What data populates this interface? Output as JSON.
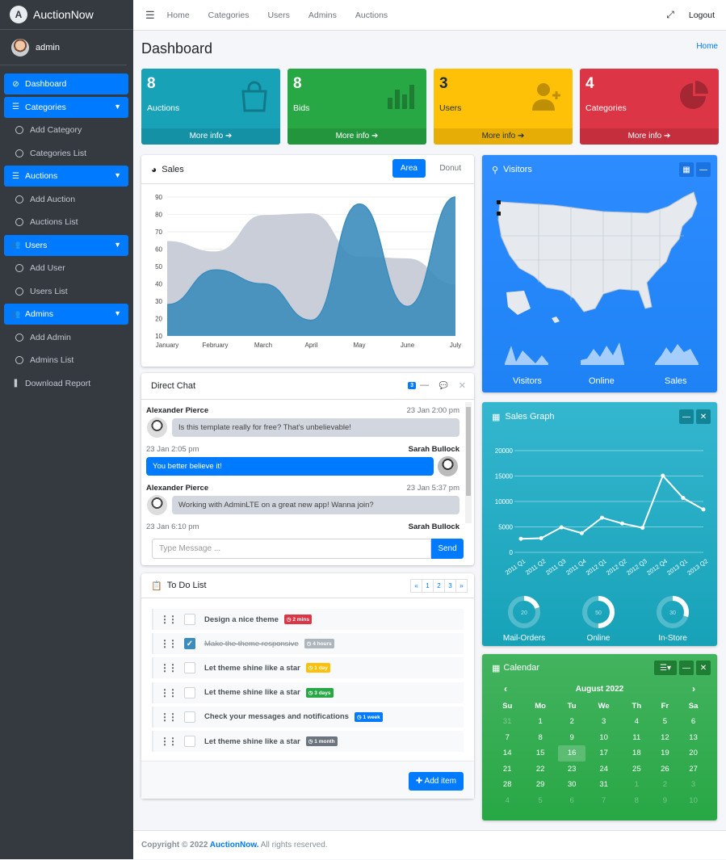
{
  "app": {
    "brand": "AuctionNow",
    "user": "admin"
  },
  "sidebar": {
    "items": [
      {
        "label": "Dashboard",
        "active": true
      },
      {
        "label": "Categories",
        "active": true,
        "chev": "⌄"
      },
      {
        "label": "Add Category"
      },
      {
        "label": "Categories List"
      },
      {
        "label": "Auctions",
        "active": true
      },
      {
        "label": "Add Auction"
      },
      {
        "label": "Auctions List"
      },
      {
        "label": "Users",
        "active": true
      },
      {
        "label": "Add User"
      },
      {
        "label": "Users List"
      },
      {
        "label": "Admins",
        "active": true
      },
      {
        "label": "Add Admin"
      },
      {
        "label": "Admins List"
      },
      {
        "label": "Download Report"
      }
    ]
  },
  "topbar": {
    "links": [
      "Home",
      "Categories",
      "Users",
      "Admins",
      "Auctions"
    ],
    "logout": "Logout"
  },
  "page": {
    "title": "Dashboard",
    "breadcrumb": "Home"
  },
  "stats": [
    {
      "num": "8",
      "label": "Auctions",
      "more": "More info",
      "color": "#17a2b8"
    },
    {
      "num": "8",
      "label": "Bids",
      "more": "More info",
      "color": "#28a745"
    },
    {
      "num": "3",
      "label": "Users",
      "more": "More info",
      "color": "#ffc107"
    },
    {
      "num": "4",
      "label": "Categories",
      "more": "More info",
      "color": "#dc3545"
    }
  ],
  "sales": {
    "title": "Sales",
    "tab_area": "Area",
    "tab_donut": "Donut"
  },
  "chart_data": [
    {
      "type": "area",
      "title": "",
      "categories": [
        "January",
        "February",
        "March",
        "April",
        "May",
        "June",
        "July"
      ],
      "ylim": [
        10,
        90
      ],
      "yticks": [
        10,
        20,
        30,
        40,
        50,
        60,
        70,
        80,
        90
      ],
      "series": [
        {
          "values": [
            65,
            59,
            80,
            81,
            56,
            55,
            40
          ],
          "color": "#c9ced8"
        },
        {
          "values": [
            28,
            48,
            40,
            19,
            86,
            27,
            90
          ],
          "color": "#3c8dbc"
        }
      ]
    },
    {
      "type": "line",
      "title": "",
      "categories": [
        "2011 Q1",
        "2011 Q2",
        "2011 Q3",
        "2011 Q4",
        "2012 Q1",
        "2012 Q2",
        "2012 Q3",
        "2012 Q4",
        "2013 Q1",
        "2013 Q2"
      ],
      "ylim": [
        0,
        20000
      ],
      "yticks": [
        0,
        5000,
        10000,
        15000,
        20000
      ],
      "series": [
        {
          "values": [
            2666,
            2778,
            4912,
            3767,
            6810,
            5670,
            4820,
            15073,
            10687,
            8432
          ]
        }
      ]
    }
  ],
  "visitors": {
    "title": "Visitors",
    "sparklabels": [
      "Visitors",
      "Online",
      "Sales"
    ]
  },
  "salesgraph": {
    "title": "Sales Graph",
    "knobs": [
      {
        "label": "Mail-Orders",
        "value": "20"
      },
      {
        "label": "Online",
        "value": "50"
      },
      {
        "label": "In-Store",
        "value": "30"
      }
    ]
  },
  "chat": {
    "title": "Direct Chat",
    "badge": "3",
    "placeholder": "Type Message ...",
    "send": "Send",
    "messages": [
      {
        "name": "Alexander Pierce",
        "time": "23 Jan 2:00 pm",
        "text": "Is this template really for free? That's unbelievable!"
      },
      {
        "name": "Sarah Bullock",
        "time": "23 Jan 2:05 pm",
        "text": "You better believe it!"
      },
      {
        "name": "Alexander Pierce",
        "time": "23 Jan 5:37 pm",
        "text": "Working with AdminLTE on a great new app! Wanna join?"
      },
      {
        "name": "Sarah Bullock",
        "time": "23 Jan 6:10 pm"
      }
    ]
  },
  "todo": {
    "title": "To Do List",
    "pages": [
      "«",
      "1",
      "2",
      "3",
      "»"
    ],
    "add": "Add item",
    "items": [
      {
        "text": "Design a nice theme",
        "badge": "2 mins",
        "color": "#dc3545",
        "done": false
      },
      {
        "text": "Make the theme responsive",
        "badge": "4 hours",
        "color": "#adb5bd",
        "done": true
      },
      {
        "text": "Let theme shine like a star",
        "badge": "1 day",
        "color": "#ffc107",
        "done": false
      },
      {
        "text": "Let theme shine like a star",
        "badge": "3 days",
        "color": "#28a745",
        "done": false
      },
      {
        "text": "Check your messages and notifications",
        "badge": "1 week",
        "color": "#007bff",
        "done": false
      },
      {
        "text": "Let theme shine like a star",
        "badge": "1 month",
        "color": "#6c757d",
        "done": false
      }
    ]
  },
  "calendar": {
    "title": "Calendar",
    "month": "August 2022",
    "days": [
      "Su",
      "Mo",
      "Tu",
      "We",
      "Th",
      "Fr",
      "Sa"
    ],
    "weeks": [
      [
        "31",
        "1",
        "2",
        "3",
        "4",
        "5",
        "6"
      ],
      [
        "7",
        "8",
        "9",
        "10",
        "11",
        "12",
        "13"
      ],
      [
        "14",
        "15",
        "16",
        "17",
        "18",
        "19",
        "20"
      ],
      [
        "21",
        "22",
        "23",
        "24",
        "25",
        "26",
        "27"
      ],
      [
        "28",
        "29",
        "30",
        "31",
        "1",
        "2",
        "3"
      ],
      [
        "4",
        "5",
        "6",
        "7",
        "8",
        "9",
        "10"
      ]
    ],
    "today": "16"
  },
  "footer": {
    "prefix": "Copyright © 2022 ",
    "brand": "AuctionNow.",
    "suffix": " All rights reserved."
  }
}
